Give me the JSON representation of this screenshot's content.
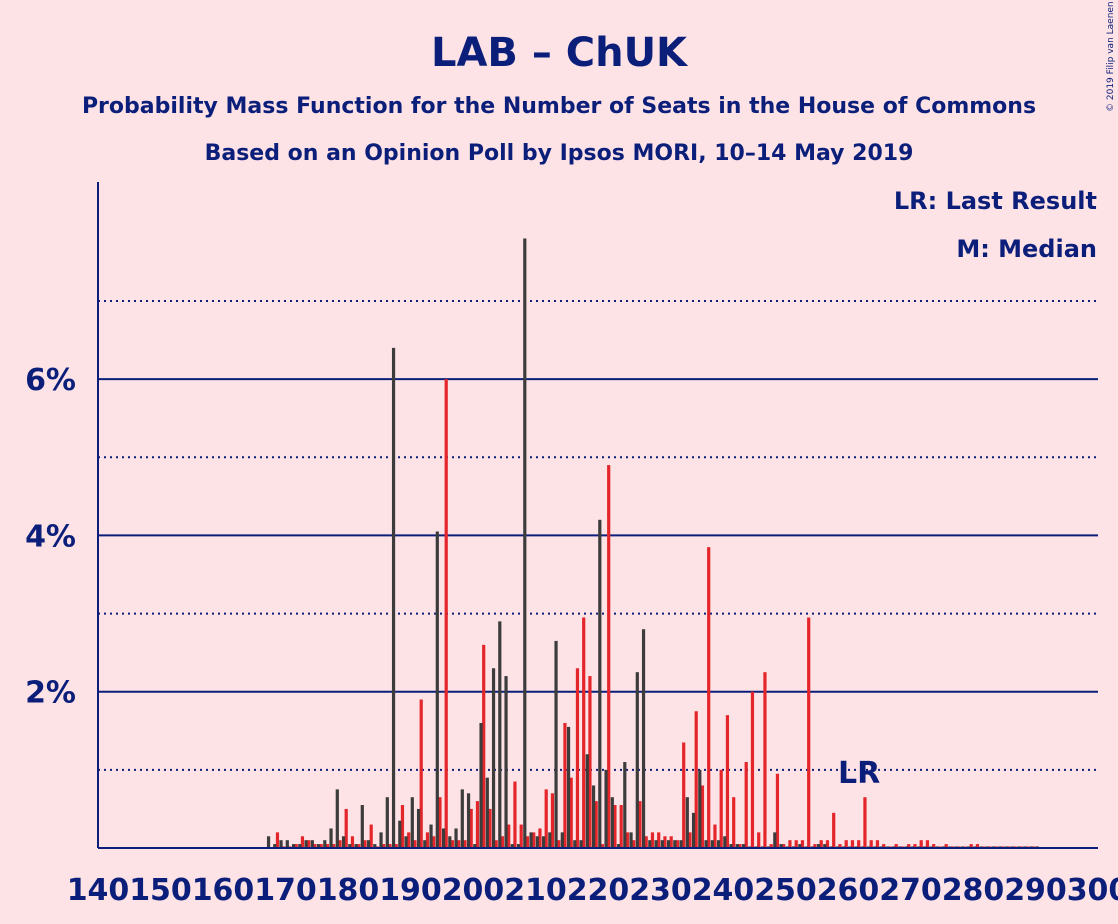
{
  "chart_data": {
    "type": "bar",
    "title": "LAB – ChUK",
    "subtitle": "Probability Mass Function for the Number of Seats in the House of Commons",
    "subtitle2": "Based on an Opinion Poll by Ipsos MORI, 10–14 May 2019",
    "copyright": "© 2019 Filip van Laenen",
    "legend": [
      "LR: Last Result",
      "M: Median"
    ],
    "last_result_label": "LR",
    "median_label": "M",
    "ylim": [
      0,
      8.5
    ],
    "yticks": [
      {
        "value": 2,
        "label": "2%"
      },
      {
        "value": 4,
        "label": "4%"
      },
      {
        "value": 6,
        "label": "6%"
      }
    ],
    "xticks": [
      "140",
      "150",
      "160",
      "170",
      "180",
      "190",
      "200",
      "210",
      "220",
      "230",
      "240",
      "250",
      "260",
      "270",
      "280",
      "290",
      "300"
    ],
    "xlim": [
      140,
      300
    ],
    "colors": {
      "lab": "#e4252a",
      "chuk": "#3c3c3c",
      "axis": "#0b1f7a",
      "background": "#fde2e6"
    },
    "series": [
      {
        "name": "LAB",
        "x": [
          160,
          161,
          162,
          163,
          164,
          165,
          166,
          167,
          168,
          169,
          170,
          171,
          172,
          173,
          174,
          175,
          176,
          177,
          178,
          179,
          180,
          181,
          182,
          183,
          184,
          185,
          186,
          187,
          188,
          189,
          190,
          191,
          192,
          193,
          194,
          195,
          196,
          197,
          198,
          199,
          200,
          201,
          202,
          203,
          204,
          205,
          206,
          207,
          208,
          209,
          210,
          211,
          212,
          213,
          214,
          215,
          216,
          217,
          218,
          219,
          220,
          221,
          222,
          223,
          224,
          225,
          226,
          227,
          228,
          229,
          230,
          231,
          232,
          233,
          234,
          235,
          236,
          237,
          238,
          239,
          240,
          241,
          242,
          243,
          244,
          245,
          246,
          247,
          248,
          249,
          250,
          251,
          252,
          253,
          254,
          255,
          256,
          257,
          258,
          259,
          260,
          261,
          262,
          263,
          264,
          265,
          266,
          267,
          268,
          269,
          270,
          271,
          272,
          273,
          274,
          275,
          276,
          277,
          278,
          279,
          280,
          281,
          282,
          283,
          284,
          285,
          286,
          287,
          288,
          289,
          290
        ],
        "values": [
          0.01,
          0.01,
          0.01,
          0.01,
          0.01,
          0.01,
          0.01,
          0.01,
          0.01,
          0.2,
          0.02,
          0.02,
          0.05,
          0.15,
          0.1,
          0.05,
          0.05,
          0.05,
          0.05,
          0.1,
          0.5,
          0.15,
          0.05,
          0.1,
          0.3,
          0.02,
          0.05,
          0.05,
          0.05,
          0.55,
          0.2,
          0.1,
          1.9,
          0.2,
          0.15,
          0.65,
          6.0,
          0.1,
          0.1,
          0.1,
          0.5,
          0.6,
          2.6,
          0.5,
          0.1,
          0.15,
          0.3,
          0.85,
          0.3,
          0.15,
          0.2,
          0.25,
          0.75,
          0.7,
          0.1,
          1.6,
          0.9,
          2.3,
          2.95,
          2.2,
          0.6,
          0.05,
          4.9,
          0.55,
          0.55,
          0.2,
          0.1,
          0.6,
          0.15,
          0.2,
          0.2,
          0.15,
          0.15,
          0.1,
          1.35,
          0.2,
          1.75,
          0.8,
          3.85,
          0.3,
          1.0,
          1.7,
          0.65,
          0.05,
          1.1,
          2.0,
          0.2,
          2.25,
          0.05,
          0.95,
          0.05,
          0.1,
          0.1,
          0.1,
          2.95,
          0.05,
          0.1,
          0.1,
          0.45,
          0.05,
          0.1,
          0.1,
          0.1,
          0.65,
          0.1,
          0.1,
          0.05,
          0.02,
          0.05,
          0.02,
          0.05,
          0.05,
          0.1,
          0.1,
          0.05,
          0.02,
          0.05,
          0.02,
          0.02,
          0.02,
          0.05,
          0.05,
          0.02,
          0.02,
          0.02,
          0.02,
          0.02,
          0.02,
          0.02,
          0.02,
          0.02
        ]
      },
      {
        "name": "ChUK",
        "x": [
          160,
          161,
          162,
          163,
          164,
          165,
          166,
          167,
          168,
          169,
          170,
          171,
          172,
          173,
          174,
          175,
          176,
          177,
          178,
          179,
          180,
          181,
          182,
          183,
          184,
          185,
          186,
          187,
          188,
          189,
          190,
          191,
          192,
          193,
          194,
          195,
          196,
          197,
          198,
          199,
          200,
          201,
          202,
          203,
          204,
          205,
          206,
          207,
          208,
          209,
          210,
          211,
          212,
          213,
          214,
          215,
          216,
          217,
          218,
          219,
          220,
          221,
          222,
          223,
          224,
          225,
          226,
          227,
          228,
          229,
          230,
          231,
          232,
          233,
          234,
          235,
          236,
          237,
          238,
          239,
          240,
          241,
          242,
          243,
          244,
          245,
          246,
          247,
          248,
          249,
          250,
          251,
          252,
          253,
          254,
          255,
          256,
          257,
          258,
          259,
          260,
          261,
          262,
          263,
          264,
          265,
          266,
          267,
          268,
          269,
          270,
          271,
          272,
          273,
          274,
          275,
          276,
          277,
          278,
          279,
          280,
          281,
          282,
          283,
          284,
          285,
          286,
          287,
          288,
          289,
          290
        ],
        "values": [
          0.01,
          0.01,
          0.01,
          0.01,
          0.01,
          0.01,
          0.01,
          0.15,
          0.05,
          0.1,
          0.1,
          0.05,
          0.05,
          0.1,
          0.1,
          0.05,
          0.1,
          0.25,
          0.75,
          0.15,
          0.05,
          0.05,
          0.55,
          0.1,
          0.05,
          0.2,
          0.65,
          6.4,
          0.35,
          0.15,
          0.65,
          0.5,
          0.1,
          0.3,
          4.05,
          0.25,
          0.15,
          0.25,
          0.75,
          0.7,
          0.05,
          1.6,
          0.9,
          2.3,
          2.9,
          2.2,
          0.05,
          0.05,
          7.8,
          0.2,
          0.15,
          0.15,
          0.2,
          2.65,
          0.2,
          1.55,
          0.1,
          0.1,
          1.2,
          0.8,
          4.2,
          1.0,
          0.65,
          0.05,
          1.1,
          0.2,
          2.25,
          2.8,
          0.1,
          0.1,
          0.1,
          0.1,
          0.1,
          0.1,
          0.65,
          0.45,
          1.0,
          0.1,
          0.1,
          0.1,
          0.15,
          0.05,
          0.05,
          0.05,
          0.02,
          0.02,
          0.02,
          0.02,
          0.2,
          0.05,
          0.02,
          0.02,
          0.05,
          0.02,
          0.02,
          0.05,
          0.05,
          0.02,
          0.02,
          0.02,
          0.02,
          0.02,
          0.02,
          0.02,
          0.02,
          0.02,
          0.02,
          0.02,
          0.02,
          0.02,
          0.02,
          0.02,
          0.02,
          0.02,
          0.02,
          0.02,
          0.02,
          0.02,
          0.02,
          0.02,
          0.02,
          0.02,
          0.02,
          0.02,
          0.02,
          0.02,
          0.02,
          0.02,
          0.02,
          0.02,
          0.02
        ]
      }
    ]
  }
}
